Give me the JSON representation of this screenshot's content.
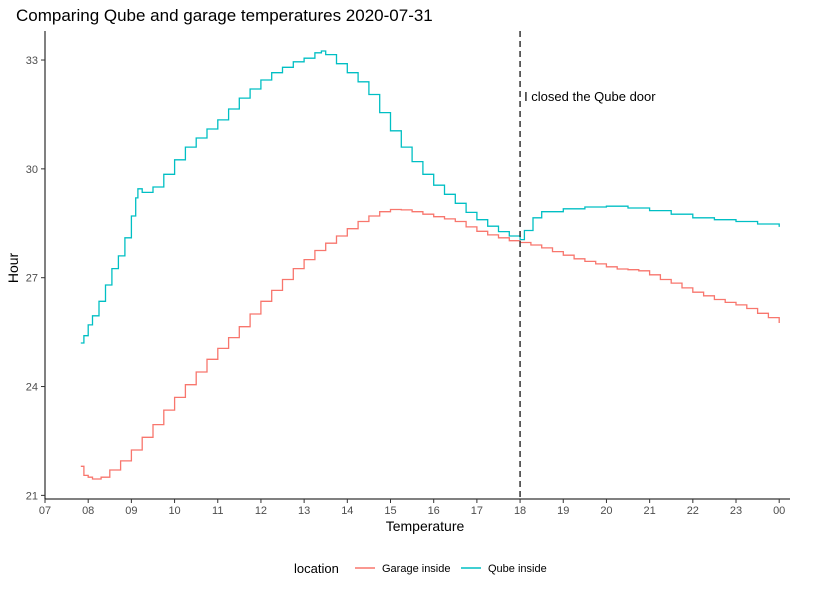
{
  "chart_data": {
    "type": "line",
    "title": "Comparing Qube and garage temperatures 2020-07-31",
    "xlabel": "Temperature",
    "ylabel": "Hour",
    "x_ticks": [
      "07",
      "08",
      "09",
      "10",
      "11",
      "12",
      "13",
      "14",
      "15",
      "16",
      "17",
      "18",
      "19",
      "20",
      "21",
      "22",
      "23",
      "00"
    ],
    "y_ticks": [
      21,
      24,
      27,
      30,
      33
    ],
    "xlim": [
      7,
      24.25
    ],
    "ylim": [
      20.9,
      33.8
    ],
    "grid": false,
    "legend": {
      "title": "location",
      "position": "bottom"
    },
    "annotation": {
      "x": 18,
      "text": "I closed the Qube door"
    },
    "series": [
      {
        "name": "Garage inside",
        "color": "#F8766D",
        "points": [
          [
            7.83,
            21.8
          ],
          [
            7.9,
            21.55
          ],
          [
            8.0,
            21.5
          ],
          [
            8.1,
            21.45
          ],
          [
            8.3,
            21.5
          ],
          [
            8.5,
            21.7
          ],
          [
            8.75,
            21.95
          ],
          [
            9.0,
            22.25
          ],
          [
            9.25,
            22.6
          ],
          [
            9.5,
            22.95
          ],
          [
            9.75,
            23.35
          ],
          [
            10.0,
            23.7
          ],
          [
            10.25,
            24.05
          ],
          [
            10.5,
            24.4
          ],
          [
            10.75,
            24.75
          ],
          [
            11.0,
            25.05
          ],
          [
            11.25,
            25.35
          ],
          [
            11.5,
            25.65
          ],
          [
            11.75,
            26.0
          ],
          [
            12.0,
            26.35
          ],
          [
            12.25,
            26.65
          ],
          [
            12.5,
            26.95
          ],
          [
            12.75,
            27.25
          ],
          [
            13.0,
            27.5
          ],
          [
            13.25,
            27.75
          ],
          [
            13.5,
            27.95
          ],
          [
            13.75,
            28.15
          ],
          [
            14.0,
            28.35
          ],
          [
            14.25,
            28.55
          ],
          [
            14.5,
            28.7
          ],
          [
            14.75,
            28.82
          ],
          [
            15.0,
            28.88
          ],
          [
            15.25,
            28.87
          ],
          [
            15.5,
            28.82
          ],
          [
            15.75,
            28.75
          ],
          [
            16.0,
            28.68
          ],
          [
            16.25,
            28.62
          ],
          [
            16.5,
            28.55
          ],
          [
            16.75,
            28.4
          ],
          [
            17.0,
            28.28
          ],
          [
            17.25,
            28.18
          ],
          [
            17.5,
            28.1
          ],
          [
            17.75,
            28.02
          ],
          [
            18.0,
            27.97
          ],
          [
            18.25,
            27.9
          ],
          [
            18.5,
            27.82
          ],
          [
            18.75,
            27.72
          ],
          [
            19.0,
            27.62
          ],
          [
            19.25,
            27.52
          ],
          [
            19.5,
            27.45
          ],
          [
            19.75,
            27.38
          ],
          [
            20.0,
            27.3
          ],
          [
            20.25,
            27.24
          ],
          [
            20.5,
            27.22
          ],
          [
            20.75,
            27.19
          ],
          [
            21.0,
            27.08
          ],
          [
            21.25,
            26.95
          ],
          [
            21.5,
            26.85
          ],
          [
            21.75,
            26.72
          ],
          [
            22.0,
            26.6
          ],
          [
            22.25,
            26.5
          ],
          [
            22.5,
            26.4
          ],
          [
            22.75,
            26.32
          ],
          [
            23.0,
            26.25
          ],
          [
            23.25,
            26.15
          ],
          [
            23.5,
            26.02
          ],
          [
            23.75,
            25.9
          ],
          [
            24.0,
            25.75
          ]
        ]
      },
      {
        "name": "Qube inside",
        "color": "#00BFC4",
        "points": [
          [
            7.83,
            25.2
          ],
          [
            7.9,
            25.4
          ],
          [
            8.0,
            25.7
          ],
          [
            8.1,
            25.95
          ],
          [
            8.25,
            26.35
          ],
          [
            8.4,
            26.8
          ],
          [
            8.55,
            27.25
          ],
          [
            8.7,
            27.6
          ],
          [
            8.85,
            28.1
          ],
          [
            9.0,
            28.7
          ],
          [
            9.1,
            29.2
          ],
          [
            9.15,
            29.45
          ],
          [
            9.25,
            29.35
          ],
          [
            9.4,
            29.35
          ],
          [
            9.5,
            29.5
          ],
          [
            9.75,
            29.85
          ],
          [
            10.0,
            30.25
          ],
          [
            10.25,
            30.6
          ],
          [
            10.5,
            30.85
          ],
          [
            10.75,
            31.1
          ],
          [
            11.0,
            31.35
          ],
          [
            11.25,
            31.65
          ],
          [
            11.5,
            31.95
          ],
          [
            11.75,
            32.2
          ],
          [
            12.0,
            32.45
          ],
          [
            12.25,
            32.65
          ],
          [
            12.5,
            32.8
          ],
          [
            12.75,
            32.95
          ],
          [
            13.0,
            33.05
          ],
          [
            13.25,
            33.2
          ],
          [
            13.4,
            33.25
          ],
          [
            13.5,
            33.15
          ],
          [
            13.75,
            32.9
          ],
          [
            14.0,
            32.65
          ],
          [
            14.25,
            32.4
          ],
          [
            14.5,
            32.05
          ],
          [
            14.75,
            31.55
          ],
          [
            15.0,
            31.05
          ],
          [
            15.25,
            30.6
          ],
          [
            15.5,
            30.2
          ],
          [
            15.75,
            29.85
          ],
          [
            16.0,
            29.55
          ],
          [
            16.25,
            29.3
          ],
          [
            16.5,
            29.05
          ],
          [
            16.75,
            28.8
          ],
          [
            17.0,
            28.6
          ],
          [
            17.25,
            28.42
          ],
          [
            17.5,
            28.27
          ],
          [
            17.75,
            28.15
          ],
          [
            18.0,
            28.05
          ],
          [
            18.1,
            28.3
          ],
          [
            18.3,
            28.65
          ],
          [
            18.5,
            28.82
          ],
          [
            19.0,
            28.9
          ],
          [
            19.5,
            28.95
          ],
          [
            20.0,
            28.97
          ],
          [
            20.5,
            28.92
          ],
          [
            21.0,
            28.85
          ],
          [
            21.5,
            28.75
          ],
          [
            22.0,
            28.65
          ],
          [
            22.5,
            28.6
          ],
          [
            23.0,
            28.55
          ],
          [
            23.5,
            28.48
          ],
          [
            24.0,
            28.4
          ]
        ]
      }
    ]
  }
}
